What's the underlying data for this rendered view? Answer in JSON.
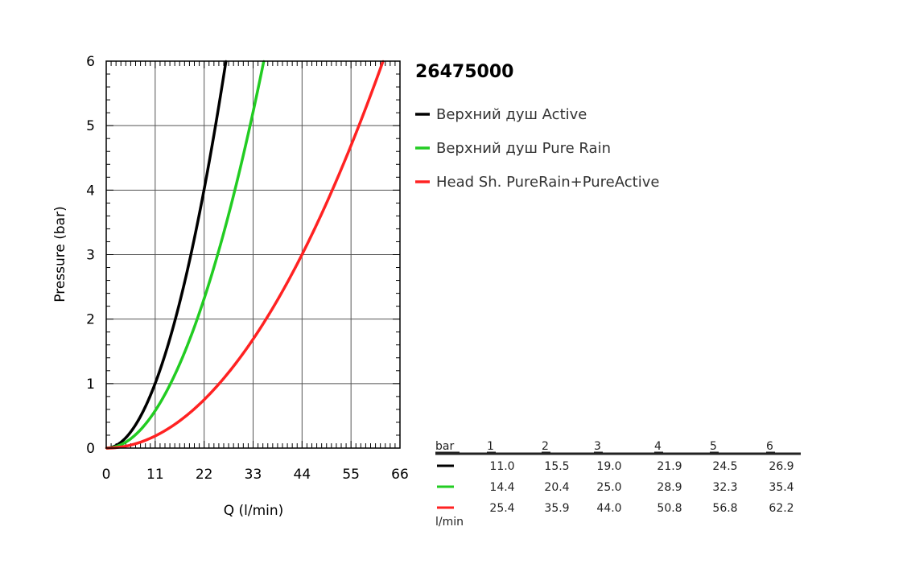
{
  "chart_data": {
    "type": "line",
    "title": "26475000",
    "xlabel": "Q (l/min)",
    "ylabel": "Pressure (bar)",
    "xlim": [
      0,
      66
    ],
    "ylim": [
      0,
      6
    ],
    "x_ticks": [
      "0",
      "11",
      "22",
      "33",
      "44",
      "55",
      "66"
    ],
    "y_ticks": [
      "0",
      "1",
      "2",
      "3",
      "4",
      "5",
      "6"
    ],
    "grid": true,
    "legend_position": "right",
    "series": [
      {
        "name": "Верхний душ Active",
        "color": "#000000",
        "x": [
          0,
          11.0,
          15.5,
          19.0,
          21.9,
          24.5,
          26.9
        ],
        "y": [
          0,
          1,
          2,
          3,
          4,
          5,
          6
        ]
      },
      {
        "name": "Верхний душ Pure Rain",
        "color": "#22cc22",
        "x": [
          0,
          14.4,
          20.4,
          25.0,
          28.9,
          32.3,
          35.4
        ],
        "y": [
          0,
          1,
          2,
          3,
          4,
          5,
          6
        ]
      },
      {
        "name": "Head Sh. PureRain+PureActive",
        "color": "#ff2222",
        "x": [
          0,
          25.4,
          35.9,
          44.0,
          50.8,
          56.8,
          62.2
        ],
        "y": [
          0,
          1,
          2,
          3,
          4,
          5,
          6
        ]
      }
    ],
    "table": {
      "header_label": "bar",
      "unit_label": "l/min",
      "columns": [
        "1",
        "2",
        "3",
        "4",
        "5",
        "6"
      ],
      "rows": [
        {
          "color": "#000000",
          "values": [
            "11.0",
            "15.5",
            "19.0",
            "21.9",
            "24.5",
            "26.9"
          ]
        },
        {
          "color": "#22cc22",
          "values": [
            "14.4",
            "20.4",
            "25.0",
            "28.9",
            "32.3",
            "35.4"
          ]
        },
        {
          "color": "#ff2222",
          "values": [
            "25.4",
            "35.9",
            "44.0",
            "50.8",
            "56.8",
            "62.2"
          ]
        }
      ]
    }
  }
}
